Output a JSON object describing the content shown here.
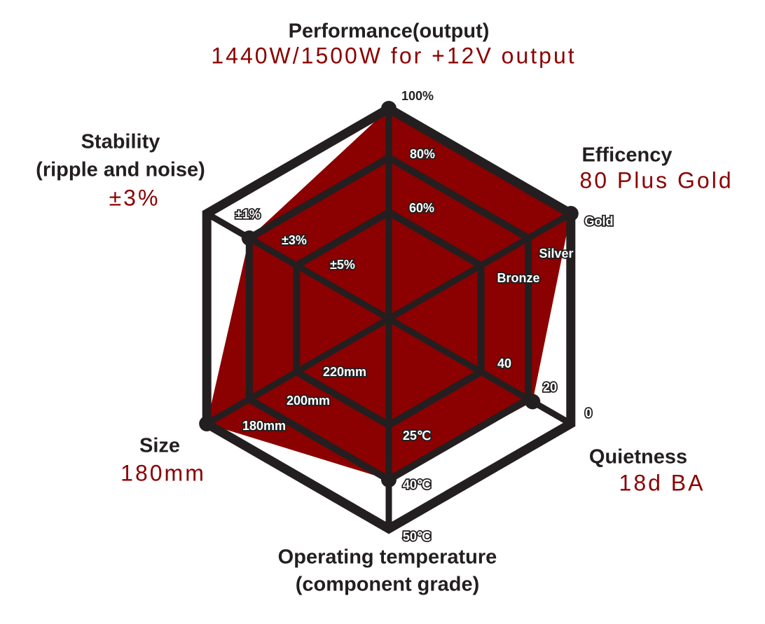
{
  "chart_data": {
    "type": "radar",
    "colors": {
      "fill": "#8b0000",
      "grid": "#231f20",
      "value_text": "#8b0000"
    },
    "axes": [
      {
        "name": "Performance(output)",
        "value_label": "1440W/1500W for +12V output",
        "ticks": [
          "60%",
          "80%",
          "100%"
        ],
        "value": "100%"
      },
      {
        "name": "Efficency",
        "value_label": "80 Plus Gold",
        "ticks": [
          "Bronze",
          "Silver",
          "Gold"
        ],
        "value": "Gold"
      },
      {
        "name": "Quietness",
        "value_label": "18d BA",
        "ticks": [
          "40",
          "20",
          "0"
        ],
        "value": 18
      },
      {
        "name": "Operating temperature",
        "name_line2": "(component grade)",
        "ticks": [
          "25℃",
          "40℃",
          "50℃"
        ],
        "value": "40℃"
      },
      {
        "name": "Size",
        "value_label": "180mm",
        "ticks": [
          "220mm",
          "200mm",
          "180mm"
        ],
        "value": "180mm"
      },
      {
        "name": "Stability",
        "name_line2": "(ripple and noise)",
        "value_label": "±3%",
        "ticks": [
          "±5%",
          "±3%",
          "±1%"
        ],
        "value": "±3%"
      }
    ]
  }
}
